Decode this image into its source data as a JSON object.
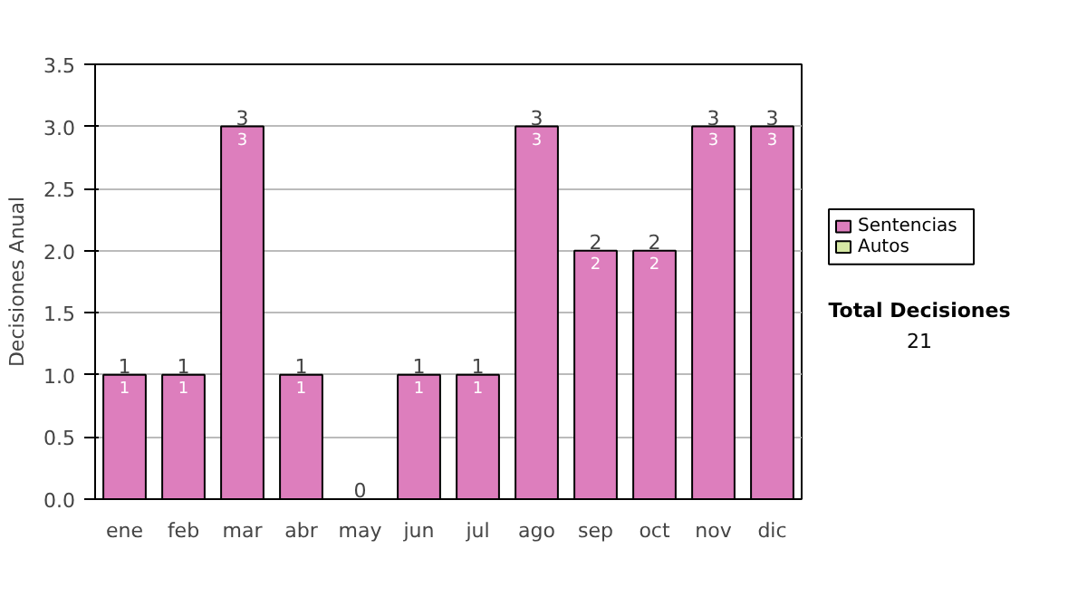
{
  "chart_data": {
    "type": "bar",
    "stacked": true,
    "ylabel": "Decisiones Anual",
    "categories": [
      "ene",
      "feb",
      "mar",
      "abr",
      "may",
      "jun",
      "jul",
      "ago",
      "sep",
      "oct",
      "nov",
      "dic"
    ],
    "series": [
      {
        "name": "Sentencias",
        "color": "#dd7ebd",
        "values": [
          1,
          1,
          3,
          1,
          0,
          1,
          1,
          3,
          2,
          2,
          3,
          3
        ],
        "value_labels": [
          "1",
          "1",
          "3",
          "1",
          null,
          "1",
          "1",
          "3",
          "2",
          "2",
          "3",
          "3"
        ]
      },
      {
        "name": "Autos",
        "color": "#d6e8a4",
        "values": [
          0,
          0,
          0,
          0,
          0,
          0,
          0,
          0,
          0,
          0,
          0,
          0
        ]
      }
    ],
    "totals": [
      "1",
      "1",
      "3",
      "1",
      "0",
      "1",
      "1",
      "3",
      "2",
      "2",
      "3",
      "3"
    ],
    "ylim": [
      0,
      3.5
    ],
    "yticks": [
      {
        "value": 0,
        "label": "0.0"
      },
      {
        "value": 0.5,
        "label": "0.5"
      },
      {
        "value": 1,
        "label": "1.0"
      },
      {
        "value": 1.5,
        "label": "1.5"
      },
      {
        "value": 2,
        "label": "2.0"
      },
      {
        "value": 2.5,
        "label": "2.5"
      },
      {
        "value": 3,
        "label": "3.0"
      },
      {
        "value": 3.5,
        "label": "3.5"
      }
    ],
    "grid": "y",
    "legend": "right",
    "annotations": [
      "Total Decisiones",
      "21"
    ]
  }
}
